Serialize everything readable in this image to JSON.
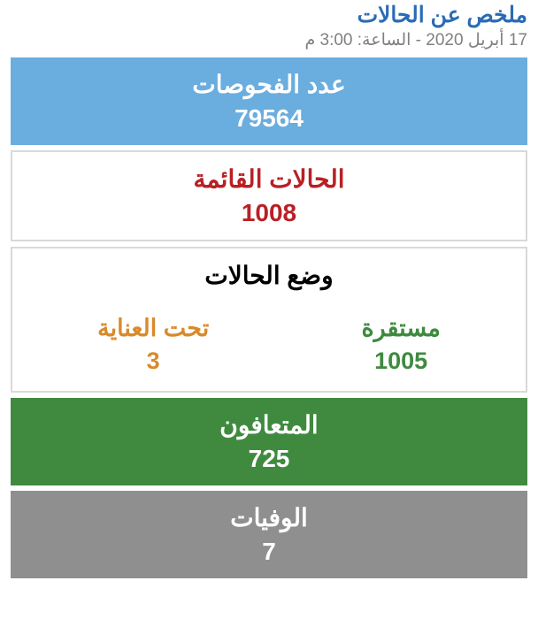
{
  "header": {
    "title": "ملخص عن الحالات",
    "title_color": "#2a6bb5",
    "subtitle": "17 أبريل 2020 - الساعة: 3:00 م",
    "subtitle_color": "#808080"
  },
  "tests": {
    "label": "عدد الفحوصات",
    "value": "79564",
    "background_color": "#6aaddf",
    "text_color": "#ffffff"
  },
  "active": {
    "label": "الحالات القائمة",
    "value": "1008",
    "background_color": "#ffffff",
    "border_color": "#d9d9d9",
    "text_color": "#b82025"
  },
  "status": {
    "title": "وضع الحالات",
    "title_color": "#000000",
    "background_color": "#ffffff",
    "border_color": "#d9d9d9",
    "stable": {
      "label": "مستقرة",
      "value": "1005",
      "color": "#3f8a3f"
    },
    "critical": {
      "label": "تحت العناية",
      "value": "3",
      "color": "#d98a2b"
    }
  },
  "recovered": {
    "label": "المتعافون",
    "value": "725",
    "background_color": "#3f8a3f",
    "text_color": "#ffffff"
  },
  "deaths": {
    "label": "الوفيات",
    "value": "7",
    "background_color": "#8f8f8f",
    "text_color": "#ffffff"
  }
}
